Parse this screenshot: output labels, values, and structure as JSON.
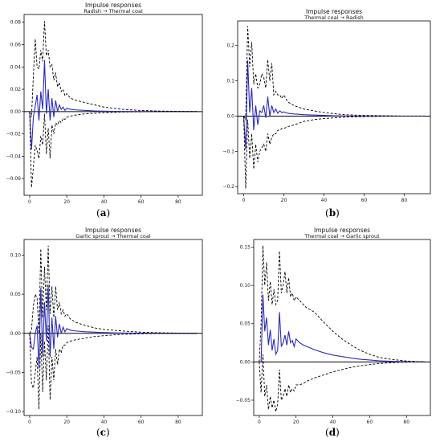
{
  "chart_data": [
    {
      "type": "line",
      "title": "Impulse responses",
      "subtitle": "Radish → Thermal coal",
      "caption": "a",
      "xlim": [
        -3,
        93
      ],
      "ylim": [
        -0.075,
        0.087
      ],
      "xticks": [
        0,
        20,
        40,
        60,
        80
      ],
      "yticks": [
        -0.06,
        -0.04,
        -0.02,
        0.0,
        0.02,
        0.04,
        0.06,
        0.08
      ],
      "ytick_labels": [
        "−0.06",
        "−0.04",
        "−0.02",
        "0.00",
        "0.02",
        "0.04",
        "0.06",
        "0.08"
      ],
      "series": [
        {
          "role": "response",
          "color": "#2a2ab8",
          "x": [
            0,
            1,
            2,
            3,
            4,
            5,
            6,
            7,
            8,
            9,
            10,
            11,
            12,
            13,
            14,
            15,
            16,
            17,
            18,
            19,
            20,
            22,
            25,
            30,
            35,
            40,
            45,
            50,
            60,
            70,
            80,
            90
          ],
          "y": [
            0,
            -0.034,
            -0.005,
            0.005,
            0.015,
            -0.008,
            0.018,
            0.002,
            0.046,
            -0.002,
            0.02,
            -0.008,
            0.012,
            -0.005,
            0.01,
            0.0,
            0.006,
            0.002,
            0.004,
            0.001,
            0.003,
            0.002,
            0.0015,
            0.001,
            0.0006,
            0.0004,
            0.0002,
            0.0001,
            0,
            0,
            0,
            0
          ]
        },
        {
          "role": "upper",
          "color": "#000000",
          "x": [
            0,
            1,
            2,
            3,
            4,
            5,
            6,
            7,
            8,
            9,
            10,
            11,
            12,
            13,
            14,
            15,
            16,
            17,
            18,
            19,
            20,
            22,
            25,
            30,
            35,
            40,
            45,
            50,
            60,
            70,
            80,
            90
          ],
          "y": [
            0,
            -0.005,
            0.032,
            0.065,
            0.04,
            0.038,
            0.055,
            0.045,
            0.081,
            0.05,
            0.055,
            0.04,
            0.042,
            0.028,
            0.035,
            0.022,
            0.026,
            0.018,
            0.02,
            0.014,
            0.016,
            0.012,
            0.01,
            0.008,
            0.006,
            0.004,
            0.003,
            0.002,
            0.001,
            0.0005,
            0.0002,
            0
          ]
        },
        {
          "role": "lower",
          "color": "#000000",
          "x": [
            0,
            1,
            2,
            3,
            4,
            5,
            6,
            7,
            8,
            9,
            10,
            11,
            12,
            13,
            14,
            15,
            16,
            17,
            18,
            19,
            20,
            22,
            25,
            30,
            35,
            40,
            45,
            50,
            60,
            70,
            80,
            90
          ],
          "y": [
            0,
            -0.068,
            -0.05,
            -0.03,
            -0.035,
            -0.042,
            -0.022,
            -0.03,
            -0.002,
            -0.038,
            -0.015,
            -0.042,
            -0.012,
            -0.02,
            -0.01,
            -0.012,
            -0.008,
            -0.01,
            -0.006,
            -0.007,
            -0.005,
            -0.004,
            -0.003,
            -0.002,
            -0.0015,
            -0.001,
            -0.0007,
            -0.0004,
            -0.0002,
            -0.0001,
            0,
            0
          ]
        }
      ]
    },
    {
      "type": "line",
      "title": "Impulse responses",
      "subtitle": "Thermal coal → Radish",
      "caption": "b",
      "xlim": [
        -3,
        93
      ],
      "ylim": [
        -0.22,
        0.27
      ],
      "xticks": [
        0,
        20,
        40,
        60,
        80
      ],
      "yticks": [
        -0.2,
        -0.1,
        0.0,
        0.1,
        0.2
      ],
      "ytick_labels": [
        "−0.2",
        "−0.1",
        "0.0",
        "0.1",
        "0.2"
      ],
      "series": [
        {
          "role": "response",
          "color": "#2a2ab8",
          "x": [
            0,
            1,
            2,
            3,
            4,
            5,
            6,
            7,
            8,
            9,
            10,
            11,
            12,
            13,
            14,
            15,
            16,
            17,
            18,
            19,
            20,
            22,
            25,
            30,
            35,
            40,
            45,
            50,
            60,
            70,
            80,
            90
          ],
          "y": [
            0,
            -0.095,
            0.158,
            0.01,
            0.08,
            -0.04,
            0.03,
            -0.025,
            0.015,
            0.01,
            0.03,
            -0.005,
            0.055,
            0.0,
            0.03,
            0.01,
            0.02,
            0.008,
            0.015,
            0.01,
            0.012,
            0.008,
            0.006,
            0.004,
            0.003,
            0.002,
            0.001,
            0.0005,
            0.0002,
            0,
            0,
            0
          ]
        },
        {
          "role": "upper",
          "color": "#000000",
          "x": [
            0,
            1,
            2,
            3,
            4,
            5,
            6,
            7,
            8,
            9,
            10,
            11,
            12,
            13,
            14,
            15,
            16,
            17,
            18,
            19,
            20,
            22,
            25,
            30,
            35,
            40,
            45,
            50,
            60,
            70,
            80,
            90
          ],
          "y": [
            0,
            -0.01,
            0.255,
            0.14,
            0.21,
            0.09,
            0.12,
            0.08,
            0.09,
            0.12,
            0.11,
            0.08,
            0.16,
            0.1,
            0.15,
            0.06,
            0.07,
            0.06,
            0.06,
            0.05,
            0.06,
            0.04,
            0.03,
            0.02,
            0.015,
            0.01,
            0.007,
            0.004,
            0.002,
            0.001,
            0,
            0
          ]
        },
        {
          "role": "lower",
          "color": "#000000",
          "x": [
            0,
            1,
            2,
            3,
            4,
            5,
            6,
            7,
            8,
            9,
            10,
            11,
            12,
            13,
            14,
            15,
            16,
            17,
            18,
            19,
            20,
            22,
            25,
            30,
            35,
            40,
            45,
            50,
            60,
            70,
            80,
            90
          ],
          "y": [
            0,
            -0.205,
            -0.01,
            -0.12,
            -0.05,
            -0.15,
            -0.08,
            -0.13,
            -0.1,
            -0.09,
            -0.08,
            -0.1,
            -0.05,
            -0.08,
            -0.06,
            -0.05,
            -0.05,
            -0.04,
            -0.04,
            -0.035,
            -0.035,
            -0.03,
            -0.025,
            -0.015,
            -0.01,
            -0.007,
            -0.005,
            -0.003,
            -0.0015,
            -0.0005,
            0,
            0
          ]
        }
      ]
    },
    {
      "type": "line",
      "title": "Impulse responses",
      "subtitle": "Garlic sprout → Thermal coal",
      "caption": "c",
      "xlim": [
        -3,
        93
      ],
      "ylim": [
        -0.105,
        0.12
      ],
      "xticks": [
        0,
        20,
        40,
        60,
        80
      ],
      "yticks": [
        -0.1,
        -0.05,
        0.0,
        0.05,
        0.1
      ],
      "ytick_labels": [
        "−0.10",
        "−0.05",
        "0.00",
        "0.05",
        "0.10"
      ],
      "series": [
        {
          "role": "response",
          "color": "#2a2ab8",
          "x": [
            0,
            1,
            2,
            3,
            4,
            5,
            6,
            7,
            8,
            9,
            10,
            11,
            12,
            13,
            14,
            15,
            16,
            17,
            18,
            19,
            20,
            22,
            25,
            30,
            35,
            40,
            45,
            50,
            60,
            70,
            80,
            90
          ],
          "y": [
            0,
            -0.018,
            -0.02,
            0.0,
            0.01,
            -0.045,
            0.058,
            -0.03,
            0.04,
            -0.01,
            0.062,
            -0.03,
            0.02,
            -0.02,
            0.022,
            -0.005,
            0.012,
            0.0,
            0.008,
            0.002,
            0.006,
            0.004,
            0.003,
            0.002,
            0.0015,
            0.001,
            0.0007,
            0.0004,
            0.0002,
            0,
            0,
            0
          ]
        },
        {
          "role": "upper",
          "color": "#000000",
          "x": [
            0,
            1,
            2,
            3,
            4,
            5,
            6,
            7,
            8,
            9,
            10,
            11,
            12,
            13,
            14,
            15,
            16,
            17,
            18,
            19,
            20,
            22,
            25,
            30,
            35,
            40,
            45,
            50,
            60,
            70,
            80,
            90
          ],
          "y": [
            0,
            0.005,
            0.035,
            0.05,
            0.045,
            0.0,
            0.108,
            0.02,
            0.085,
            0.03,
            0.112,
            0.025,
            0.06,
            0.02,
            0.06,
            0.03,
            0.04,
            0.025,
            0.03,
            0.022,
            0.025,
            0.018,
            0.014,
            0.01,
            0.007,
            0.005,
            0.004,
            0.003,
            0.0015,
            0.0008,
            0.0003,
            0
          ]
        },
        {
          "role": "lower",
          "color": "#000000",
          "x": [
            0,
            1,
            2,
            3,
            4,
            5,
            6,
            7,
            8,
            9,
            10,
            11,
            12,
            13,
            14,
            15,
            16,
            17,
            18,
            19,
            20,
            22,
            25,
            30,
            35,
            40,
            45,
            50,
            60,
            70,
            80,
            90
          ],
          "y": [
            0,
            -0.065,
            -0.07,
            -0.05,
            -0.03,
            -0.097,
            0.0,
            -0.075,
            -0.01,
            -0.06,
            0.01,
            -0.085,
            -0.03,
            -0.06,
            -0.02,
            -0.04,
            -0.02,
            -0.025,
            -0.015,
            -0.015,
            -0.012,
            -0.01,
            -0.008,
            -0.006,
            -0.004,
            -0.003,
            -0.002,
            -0.0012,
            -0.0006,
            -0.0002,
            0,
            0
          ]
        }
      ]
    },
    {
      "type": "line",
      "title": "Impulse responses",
      "subtitle": "Thermal coal → Garlic sprout",
      "caption": "d",
      "xlim": [
        -3,
        93
      ],
      "ylim": [
        -0.07,
        0.16
      ],
      "xticks": [
        0,
        20,
        40,
        60,
        80
      ],
      "yticks": [
        -0.05,
        0.0,
        0.05,
        0.1,
        0.15
      ],
      "ytick_labels": [
        "−0.05",
        "0.00",
        "0.05",
        "0.10",
        "0.15"
      ],
      "series": [
        {
          "role": "response",
          "color": "#2a2ab8",
          "x": [
            0,
            1,
            2,
            3,
            4,
            5,
            6,
            7,
            8,
            9,
            10,
            11,
            12,
            13,
            14,
            15,
            16,
            17,
            18,
            19,
            20,
            22,
            24,
            26,
            28,
            30,
            35,
            40,
            45,
            50,
            55,
            60,
            65,
            70,
            75,
            80,
            85,
            90
          ],
          "y": [
            0,
            0.0,
            0.088,
            0.04,
            0.058,
            0.022,
            0.042,
            0.015,
            0.03,
            0.01,
            0.015,
            0.065,
            0.02,
            0.025,
            0.035,
            0.022,
            0.04,
            0.025,
            0.028,
            0.02,
            0.03,
            0.025,
            0.022,
            0.02,
            0.018,
            0.016,
            0.012,
            0.009,
            0.007,
            0.005,
            0.0035,
            0.0025,
            0.0015,
            0.001,
            0.0006,
            0.0003,
            0.0001,
            0
          ]
        },
        {
          "role": "upper",
          "color": "#000000",
          "x": [
            0,
            1,
            2,
            3,
            4,
            5,
            6,
            7,
            8,
            9,
            10,
            11,
            12,
            13,
            14,
            15,
            16,
            17,
            18,
            19,
            20,
            22,
            24,
            26,
            28,
            30,
            35,
            40,
            45,
            50,
            55,
            60,
            65,
            70,
            75,
            80,
            85,
            90
          ],
          "y": [
            0,
            0.05,
            0.152,
            0.1,
            0.13,
            0.08,
            0.105,
            0.075,
            0.095,
            0.075,
            0.08,
            0.145,
            0.09,
            0.1,
            0.118,
            0.09,
            0.11,
            0.085,
            0.09,
            0.08,
            0.085,
            0.08,
            0.075,
            0.07,
            0.068,
            0.065,
            0.052,
            0.04,
            0.03,
            0.022,
            0.015,
            0.01,
            0.006,
            0.004,
            0.0025,
            0.0012,
            0.0005,
            0
          ]
        },
        {
          "role": "lower",
          "color": "#000000",
          "x": [
            0,
            1,
            2,
            3,
            4,
            5,
            6,
            7,
            8,
            9,
            10,
            11,
            12,
            13,
            14,
            15,
            16,
            17,
            18,
            19,
            20,
            22,
            24,
            26,
            28,
            30,
            35,
            40,
            45,
            50,
            55,
            60,
            65,
            70,
            75,
            80,
            85,
            90
          ],
          "y": [
            0,
            -0.04,
            0.01,
            -0.045,
            -0.03,
            -0.062,
            -0.045,
            -0.06,
            -0.05,
            -0.065,
            -0.055,
            -0.01,
            -0.05,
            -0.045,
            -0.035,
            -0.045,
            -0.03,
            -0.04,
            -0.035,
            -0.038,
            -0.03,
            -0.03,
            -0.028,
            -0.025,
            -0.023,
            -0.021,
            -0.017,
            -0.013,
            -0.01,
            -0.007,
            -0.005,
            -0.0035,
            -0.0022,
            -0.0013,
            -0.0007,
            -0.0003,
            -0.0001,
            0
          ]
        }
      ]
    }
  ]
}
